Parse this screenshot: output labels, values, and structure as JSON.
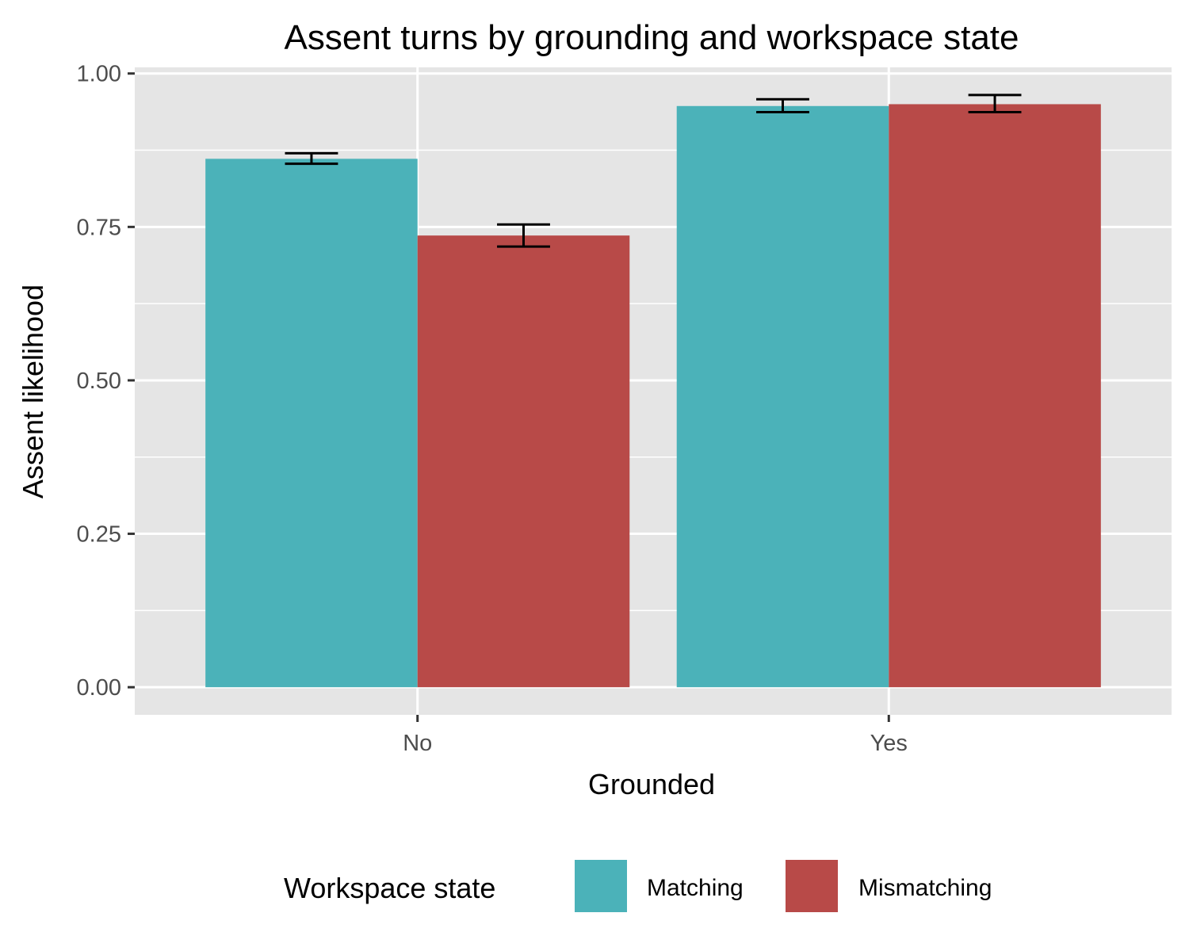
{
  "chart_data": {
    "type": "bar",
    "title": "Assent turns by grounding and workspace state",
    "xlabel": "Grounded",
    "ylabel": "Assent likelihood",
    "categories": [
      "No",
      "Yes"
    ],
    "ylim": [
      -0.045,
      1.01
    ],
    "yticks": [
      "0.00",
      "0.25",
      "0.50",
      "0.75",
      "1.00"
    ],
    "ytick_values": [
      0,
      0.25,
      0.5,
      0.75,
      1.0
    ],
    "grid": true,
    "series": [
      {
        "name": "Matching",
        "color": "#4BB2B9",
        "values": [
          0.861,
          0.947
        ],
        "error_low": [
          0.853,
          0.937
        ],
        "error_high": [
          0.87,
          0.958
        ]
      },
      {
        "name": "Mismatching",
        "color": "#B84A48",
        "values": [
          0.736,
          0.95
        ],
        "error_low": [
          0.718,
          0.937
        ],
        "error_high": [
          0.754,
          0.965
        ]
      }
    ],
    "legend": {
      "title": "Workspace state",
      "position": "bottom"
    }
  }
}
